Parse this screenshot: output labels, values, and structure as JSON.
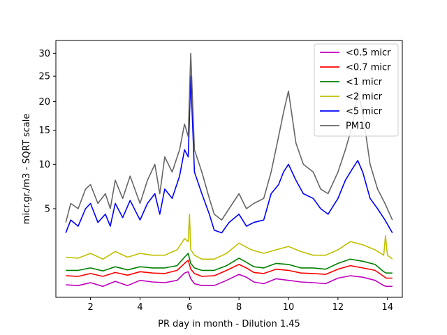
{
  "chart_data": {
    "type": "line",
    "title": "",
    "xlabel": "PR day in month - Dilution 1.45",
    "ylabel": "micr.gr./m3 - SQRT scale",
    "y_scale": "sqrt",
    "xlim": [
      0.6,
      14.6
    ],
    "ylim": [
      0.15,
      33
    ],
    "x_ticks": [
      2,
      4,
      6,
      8,
      10,
      12,
      14
    ],
    "y_ticks": [
      5,
      10,
      15,
      20,
      25,
      30
    ],
    "legend_position": "upper-right",
    "grid": false,
    "series": [
      {
        "name": "<0.5 micr",
        "color": "#bf00bf",
        "x": [
          1.0,
          1.5,
          2.0,
          2.5,
          3.0,
          3.5,
          4.0,
          4.5,
          5.0,
          5.5,
          5.8,
          5.95,
          6.05,
          6.2,
          6.5,
          7.0,
          7.5,
          8.0,
          8.3,
          8.6,
          9.0,
          9.5,
          10.0,
          10.5,
          11.0,
          11.5,
          12.0,
          12.5,
          13.0,
          13.5,
          13.85,
          13.95,
          14.2
        ],
        "y": [
          0.42,
          0.4,
          0.48,
          0.38,
          0.52,
          0.4,
          0.55,
          0.5,
          0.48,
          0.55,
          0.8,
          0.85,
          0.6,
          0.45,
          0.4,
          0.4,
          0.55,
          0.75,
          0.65,
          0.5,
          0.45,
          0.6,
          0.55,
          0.5,
          0.48,
          0.45,
          0.62,
          0.7,
          0.65,
          0.55,
          0.4,
          0.38,
          0.38
        ]
      },
      {
        "name": "<0.7 micr",
        "color": "#ff0000",
        "x": [
          1.0,
          1.5,
          2.0,
          2.5,
          3.0,
          3.5,
          4.0,
          4.5,
          5.0,
          5.5,
          5.8,
          5.95,
          6.05,
          6.2,
          6.5,
          7.0,
          7.5,
          8.0,
          8.3,
          8.6,
          9.0,
          9.5,
          10.0,
          10.5,
          11.0,
          11.5,
          12.0,
          12.5,
          13.0,
          13.5,
          13.85,
          13.95,
          14.2
        ],
        "y": [
          0.7,
          0.68,
          0.78,
          0.68,
          0.82,
          0.72,
          0.85,
          0.8,
          0.78,
          0.9,
          1.2,
          1.35,
          0.95,
          0.78,
          0.68,
          0.7,
          0.9,
          1.15,
          1.0,
          0.82,
          0.78,
          0.95,
          0.9,
          0.8,
          0.78,
          0.75,
          0.95,
          1.1,
          1.0,
          0.9,
          0.68,
          0.62,
          0.62
        ]
      },
      {
        "name": "<1 micr",
        "color": "#008000",
        "x": [
          1.0,
          1.5,
          2.0,
          2.5,
          3.0,
          3.5,
          4.0,
          4.5,
          5.0,
          5.5,
          5.8,
          5.95,
          6.05,
          6.2,
          6.5,
          7.0,
          7.5,
          8.0,
          8.3,
          8.6,
          9.0,
          9.5,
          10.0,
          10.5,
          11.0,
          11.5,
          12.0,
          12.5,
          13.0,
          13.5,
          13.85,
          13.95,
          14.2
        ],
        "y": [
          0.9,
          0.9,
          1.0,
          0.88,
          1.05,
          0.92,
          1.05,
          1.0,
          1.0,
          1.1,
          1.5,
          1.7,
          1.2,
          1.0,
          0.9,
          0.9,
          1.1,
          1.45,
          1.25,
          1.05,
          1.0,
          1.2,
          1.15,
          1.0,
          1.0,
          0.95,
          1.2,
          1.4,
          1.3,
          1.15,
          0.85,
          0.8,
          0.8
        ]
      },
      {
        "name": "<2 micr",
        "color": "#bfbf00",
        "x": [
          1.0,
          1.5,
          2.0,
          2.5,
          3.0,
          3.5,
          4.0,
          4.5,
          5.0,
          5.5,
          5.8,
          5.95,
          6.0,
          6.05,
          6.2,
          6.5,
          7.0,
          7.5,
          8.0,
          8.5,
          9.0,
          9.5,
          10.0,
          10.5,
          11.0,
          11.5,
          12.0,
          12.5,
          13.0,
          13.5,
          13.85,
          13.92,
          14.0,
          14.2
        ],
        "y": [
          1.5,
          1.45,
          1.7,
          1.4,
          1.8,
          1.5,
          1.7,
          1.6,
          1.6,
          1.9,
          2.6,
          2.4,
          4.5,
          1.9,
          1.6,
          1.4,
          1.4,
          1.7,
          2.3,
          1.9,
          1.7,
          1.9,
          2.1,
          1.8,
          1.6,
          1.6,
          1.9,
          2.4,
          2.2,
          1.9,
          1.6,
          2.8,
          1.6,
          1.4
        ]
      },
      {
        "name": "<5 micr",
        "color": "#0000ff",
        "x": [
          1.0,
          1.2,
          1.5,
          1.8,
          2.0,
          2.3,
          2.6,
          2.8,
          3.0,
          3.3,
          3.6,
          4.0,
          4.3,
          4.6,
          4.8,
          5.0,
          5.3,
          5.6,
          5.8,
          5.95,
          6.05,
          6.2,
          6.5,
          6.8,
          7.0,
          7.3,
          7.6,
          8.0,
          8.3,
          8.6,
          9.0,
          9.3,
          9.6,
          9.8,
          10.0,
          10.3,
          10.6,
          11.0,
          11.3,
          11.6,
          12.0,
          12.3,
          12.6,
          12.8,
          13.0,
          13.3,
          13.6,
          13.9,
          14.2
        ],
        "y": [
          3.0,
          4.0,
          3.5,
          5.0,
          5.5,
          3.8,
          4.5,
          3.5,
          5.5,
          4.2,
          5.8,
          4.0,
          5.5,
          6.5,
          4.5,
          7.0,
          6.0,
          8.5,
          12.0,
          11.0,
          25.0,
          9.0,
          6.5,
          4.5,
          3.2,
          3.0,
          3.8,
          4.5,
          3.5,
          3.8,
          4.0,
          6.5,
          7.5,
          9.0,
          10.0,
          8.0,
          6.5,
          6.0,
          5.0,
          4.5,
          6.0,
          8.0,
          9.5,
          10.5,
          9.0,
          6.0,
          5.0,
          4.0,
          3.0
        ]
      },
      {
        "name": "PM10",
        "color": "#666666",
        "x": [
          1.0,
          1.2,
          1.5,
          1.8,
          2.0,
          2.3,
          2.6,
          2.8,
          3.0,
          3.3,
          3.6,
          4.0,
          4.3,
          4.6,
          4.8,
          5.0,
          5.3,
          5.6,
          5.8,
          5.95,
          6.05,
          6.2,
          6.5,
          6.8,
          7.0,
          7.3,
          7.6,
          8.0,
          8.3,
          8.6,
          9.0,
          9.3,
          9.6,
          9.8,
          10.0,
          10.3,
          10.6,
          11.0,
          11.3,
          11.6,
          12.0,
          12.3,
          12.6,
          12.8,
          13.0,
          13.3,
          13.6,
          13.9,
          14.2
        ],
        "y": [
          3.8,
          5.5,
          5.0,
          7.0,
          7.5,
          5.5,
          6.5,
          5.0,
          8.0,
          6.0,
          8.5,
          5.5,
          8.0,
          10.0,
          6.5,
          11.0,
          9.0,
          12.0,
          16.0,
          14.0,
          30.0,
          12.0,
          9.0,
          6.0,
          4.5,
          4.0,
          5.0,
          6.5,
          5.0,
          5.5,
          6.0,
          9.0,
          14.0,
          18.0,
          22.0,
          13.0,
          10.0,
          9.0,
          7.0,
          6.5,
          9.0,
          12.0,
          16.0,
          22.0,
          18.0,
          10.0,
          7.0,
          5.5,
          4.0
        ]
      }
    ]
  }
}
